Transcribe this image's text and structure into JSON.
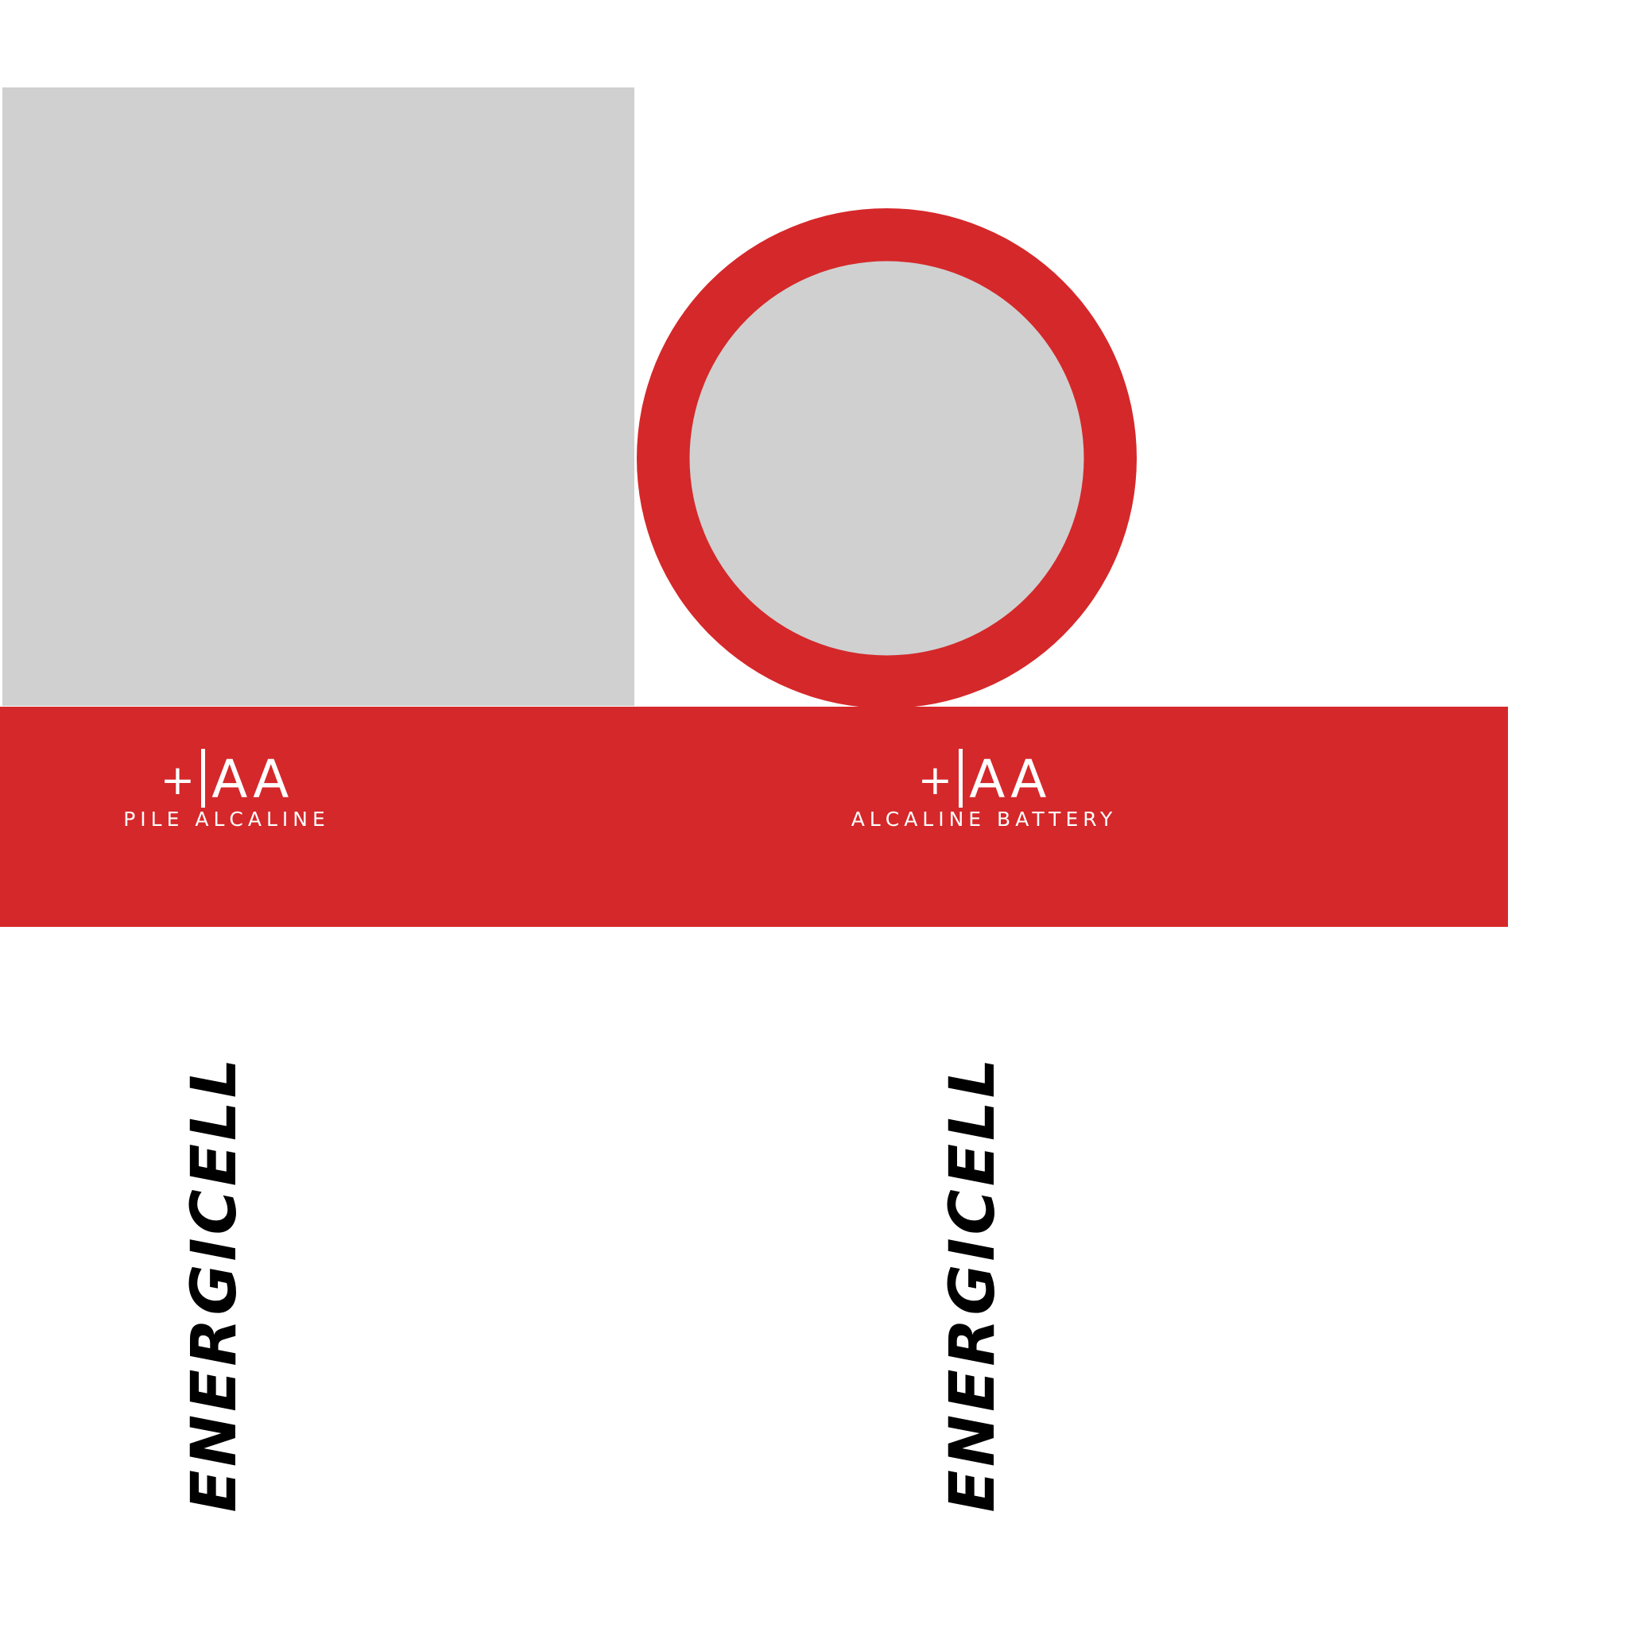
{
  "colors": {
    "brand_red": "#d5282a",
    "panel_grey": "#d0d0d0",
    "text_white": "#ffffff",
    "text_black": "#000000"
  },
  "left_label": {
    "plus": "+",
    "size": "AA",
    "description": "PILE ALCALINE"
  },
  "right_label": {
    "plus": "+",
    "size": "AA",
    "description": "ALCALINE BATTERY"
  },
  "brand": {
    "left": "ENERGICELL",
    "right": "ENERGICELL"
  }
}
